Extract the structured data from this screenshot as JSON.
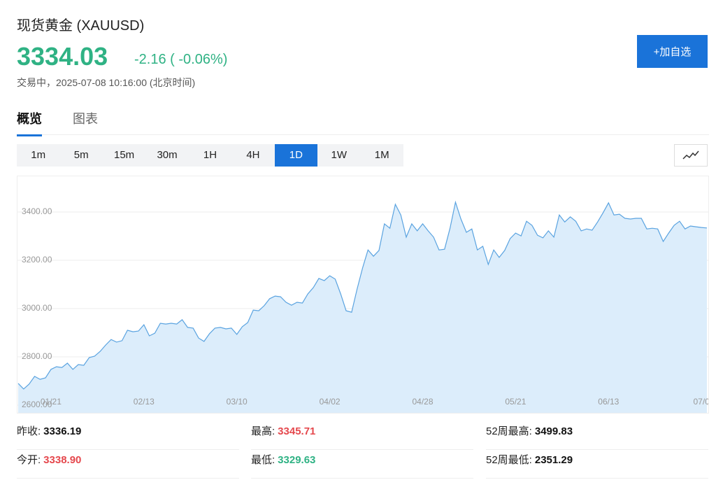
{
  "header": {
    "title": "现货黄金 (XAUUSD)",
    "price": "3334.03",
    "change": "-2.16 ( -0.06%)",
    "status": "交易中，2025-07-08 10:16:00 (北京时间)",
    "watch_button": "+加自选"
  },
  "tabs": {
    "items": [
      "概览",
      "图表"
    ],
    "active": "概览"
  },
  "periods": {
    "items": [
      "1m",
      "5m",
      "15m",
      "30m",
      "1H",
      "4H",
      "1D",
      "1W",
      "1M"
    ],
    "active": "1D"
  },
  "chart_data": {
    "type": "area",
    "color": "#5aa3e0",
    "fill": "#dcedfb",
    "grid": true,
    "ylim": [
      2568,
      3548
    ],
    "yticks": [
      {
        "value": 2600,
        "label": "2600.00"
      },
      {
        "value": 2800,
        "label": "2800.00"
      },
      {
        "value": 3000,
        "label": "3000.00"
      },
      {
        "value": 3200,
        "label": "3200.00"
      },
      {
        "value": 3400,
        "label": "3400.00"
      }
    ],
    "categories": [
      null,
      null,
      null,
      null,
      null,
      null,
      "01/21",
      null,
      null,
      null,
      null,
      null,
      null,
      null,
      null,
      null,
      null,
      null,
      null,
      null,
      null,
      null,
      null,
      "02/13",
      null,
      null,
      null,
      null,
      null,
      null,
      null,
      null,
      null,
      null,
      null,
      null,
      null,
      null,
      null,
      null,
      "03/10",
      null,
      null,
      null,
      null,
      null,
      null,
      null,
      null,
      null,
      null,
      null,
      null,
      null,
      null,
      null,
      null,
      "04/02",
      null,
      null,
      null,
      null,
      null,
      null,
      null,
      null,
      null,
      null,
      null,
      null,
      null,
      null,
      null,
      null,
      "04/28",
      null,
      null,
      null,
      null,
      null,
      null,
      null,
      null,
      null,
      null,
      null,
      null,
      null,
      null,
      null,
      null,
      "05/21",
      null,
      null,
      null,
      null,
      null,
      null,
      null,
      null,
      null,
      null,
      null,
      null,
      null,
      null,
      null,
      null,
      "06/13",
      null,
      null,
      null,
      null,
      null,
      null,
      null,
      null,
      null,
      null,
      null,
      null,
      null,
      null,
      null,
      null,
      "07/0",
      null
    ],
    "values": [
      2690,
      2667,
      2687,
      2719,
      2707,
      2713,
      2748,
      2759,
      2756,
      2774,
      2748,
      2768,
      2765,
      2797,
      2803,
      2823,
      2849,
      2872,
      2861,
      2867,
      2910,
      2904,
      2907,
      2933,
      2887,
      2898,
      2939,
      2936,
      2939,
      2936,
      2954,
      2922,
      2919,
      2878,
      2864,
      2896,
      2919,
      2922,
      2916,
      2919,
      2893,
      2925,
      2942,
      2994,
      2991,
      3012,
      3041,
      3052,
      3049,
      3026,
      3014,
      3026,
      3023,
      3061,
      3087,
      3125,
      3116,
      3136,
      3122,
      3061,
      2991,
      2985,
      3081,
      3168,
      3243,
      3217,
      3241,
      3351,
      3333,
      3432,
      3388,
      3296,
      3351,
      3322,
      3351,
      3322,
      3296,
      3243,
      3246,
      3333,
      3441,
      3371,
      3316,
      3330,
      3243,
      3258,
      3183,
      3243,
      3212,
      3241,
      3290,
      3313,
      3301,
      3362,
      3345,
      3304,
      3293,
      3322,
      3296,
      3388,
      3359,
      3380,
      3362,
      3322,
      3330,
      3325,
      3359,
      3397,
      3438,
      3388,
      3391,
      3374,
      3371,
      3374,
      3374,
      3330,
      3333,
      3330,
      3278,
      3313,
      3345,
      3362,
      3330,
      3342,
      3339,
      3336,
      3334
    ]
  },
  "stats": [
    {
      "label": "昨收:",
      "value": "3336.19"
    },
    {
      "label": "最高:",
      "value": "3345.71"
    },
    {
      "label": "52周最高:",
      "value": "3499.83"
    },
    {
      "label": "今开:",
      "value": "3338.90"
    },
    {
      "label": "最低:",
      "value": "3329.63"
    },
    {
      "label": "52周最低:",
      "value": "2351.29"
    }
  ]
}
